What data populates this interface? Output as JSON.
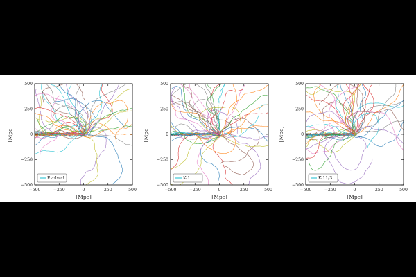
{
  "figure": {
    "background": "#ffffff",
    "page_background": "#000000"
  },
  "chart_data": [
    {
      "type": "line",
      "title": "",
      "xlabel": "[Mpc]",
      "ylabel": "[Mpc]",
      "xlim": [
        -500,
        500
      ],
      "ylim": [
        -500,
        500
      ],
      "xticks": [
        "−500",
        "−250",
        "0",
        "250",
        "500"
      ],
      "yticks": [
        "−500",
        "−250",
        "0",
        "250",
        "500"
      ],
      "grid": false,
      "legend": {
        "position": "bottom-left",
        "entries": [
          {
            "name": "Evolved",
            "color": "#17becf"
          }
        ]
      },
      "series": [],
      "note_series": "Dozens of random-walk trajectories radiating from the origin, colored in the tab10 palette",
      "seed": 7
    },
    {
      "type": "line",
      "title": "",
      "xlabel": "[Mpc]",
      "ylabel": "[Mpc]",
      "xlim": [
        -500,
        500
      ],
      "ylim": [
        -500,
        500
      ],
      "xticks": [
        "−500",
        "−250",
        "0",
        "250",
        "500"
      ],
      "yticks": [
        "−500",
        "−250",
        "0",
        "250",
        "500"
      ],
      "grid": false,
      "legend": {
        "position": "bottom-left",
        "entries": [
          {
            "name": "K-1",
            "color": "#17becf"
          }
        ]
      },
      "series": [],
      "seed": 23
    },
    {
      "type": "line",
      "title": "",
      "xlabel": "[Mpc]",
      "ylabel": "[Mpc]",
      "xlim": [
        -500,
        500
      ],
      "ylim": [
        -500,
        500
      ],
      "xticks": [
        "−500",
        "−250",
        "0",
        "250",
        "500"
      ],
      "yticks": [
        "−500",
        "−250",
        "0",
        "250",
        "500"
      ],
      "grid": false,
      "legend": {
        "position": "bottom-left",
        "entries": [
          {
            "name": "K-11/3",
            "color": "#17becf"
          }
        ]
      },
      "series": [],
      "seed": 41
    }
  ],
  "palette": [
    "#1f77b4",
    "#ff7f0e",
    "#2ca02c",
    "#d62728",
    "#9467bd",
    "#8c564b",
    "#e377c2",
    "#7f7f7f",
    "#bcbd22",
    "#17becf"
  ]
}
